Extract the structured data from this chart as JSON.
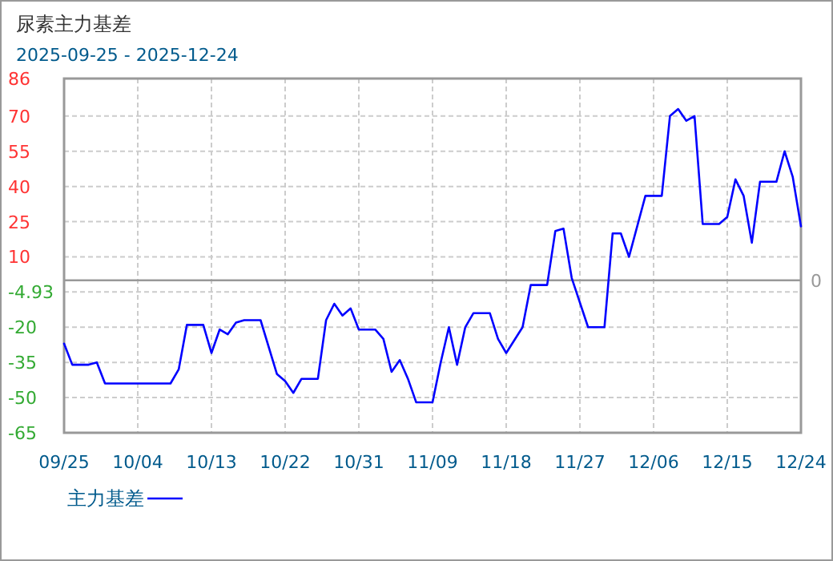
{
  "chart_data": {
    "type": "line",
    "title": "尿素主力基差",
    "subtitle": "2025-09-25 - 2025-12-24",
    "x": [
      "2025-09-25",
      "2025-09-26",
      "2025-09-28",
      "2025-09-29",
      "2025-09-30",
      "2025-10-08",
      "2025-10-09",
      "2025-10-10",
      "2025-10-12",
      "2025-10-13",
      "2025-10-14",
      "2025-10-15",
      "2025-10-16",
      "2025-10-17",
      "2025-10-19",
      "2025-10-21",
      "2025-10-22",
      "2025-10-23",
      "2025-10-24",
      "2025-10-26",
      "2025-10-27",
      "2025-10-28",
      "2025-10-29",
      "2025-10-30",
      "2025-10-31",
      "2025-11-02",
      "2025-11-03",
      "2025-11-04",
      "2025-11-05",
      "2025-11-06",
      "2025-11-07",
      "2025-11-09",
      "2025-11-10",
      "2025-11-11",
      "2025-11-12",
      "2025-11-13",
      "2025-11-14",
      "2025-11-16",
      "2025-11-17",
      "2025-11-18",
      "2025-11-20",
      "2025-11-21",
      "2025-11-23",
      "2025-11-24",
      "2025-11-25",
      "2025-11-26",
      "2025-11-28",
      "2025-11-30",
      "2025-12-01",
      "2025-12-02",
      "2025-12-03",
      "2025-12-05",
      "2025-12-07",
      "2025-12-08",
      "2025-12-09",
      "2025-12-10",
      "2025-12-11",
      "2025-12-12",
      "2025-12-14",
      "2025-12-15",
      "2025-12-16",
      "2025-12-17",
      "2025-12-18",
      "2025-12-19",
      "2025-12-21",
      "2025-12-22",
      "2025-12-23",
      "2025-12-24"
    ],
    "series": [
      {
        "name": "主力基差",
        "color": "#0000ff",
        "values": [
          -27,
          -36,
          -36,
          -35,
          -44,
          -44,
          -38,
          -19,
          -19,
          -31,
          -21,
          -23,
          -18,
          -17,
          -17,
          -40,
          -43,
          -48,
          -42,
          -42,
          -17,
          -10,
          -15,
          -12,
          -21,
          -21,
          -25,
          -39,
          -34,
          -42,
          -52,
          -52,
          -35,
          -20,
          -36,
          -20,
          -14,
          -14,
          -25,
          -31,
          -20,
          -2,
          -2,
          21,
          22,
          1,
          -20,
          -20,
          20,
          20,
          10,
          36,
          36,
          70,
          73,
          68,
          70,
          24,
          24,
          27,
          43,
          36,
          16,
          42,
          42,
          55,
          44,
          23
        ]
      }
    ],
    "xlim": [
      "2025-09-25",
      "2025-12-24"
    ],
    "xticks": [
      {
        "value": "2025-09-25",
        "label": "09/25"
      },
      {
        "value": "2025-10-04",
        "label": "10/04"
      },
      {
        "value": "2025-10-13",
        "label": "10/13"
      },
      {
        "value": "2025-10-22",
        "label": "10/22"
      },
      {
        "value": "2025-10-31",
        "label": "10/31"
      },
      {
        "value": "2025-11-09",
        "label": "11/09"
      },
      {
        "value": "2025-11-18",
        "label": "11/18"
      },
      {
        "value": "2025-11-27",
        "label": "11/27"
      },
      {
        "value": "2025-12-06",
        "label": "12/06"
      },
      {
        "value": "2025-12-15",
        "label": "12/15"
      },
      {
        "value": "2025-12-24",
        "label": "12/24"
      }
    ],
    "ylim": [
      -65,
      86
    ],
    "yticks": [
      -65,
      -50,
      -35,
      -20,
      -4.93,
      10,
      25,
      40,
      55,
      70,
      86
    ],
    "ref_lines": [
      {
        "axis": "y",
        "value": 0,
        "label": "0",
        "color": "#999999"
      }
    ],
    "grid": true,
    "legend": "bottom left",
    "marker": "none",
    "line_style": "solid"
  }
}
